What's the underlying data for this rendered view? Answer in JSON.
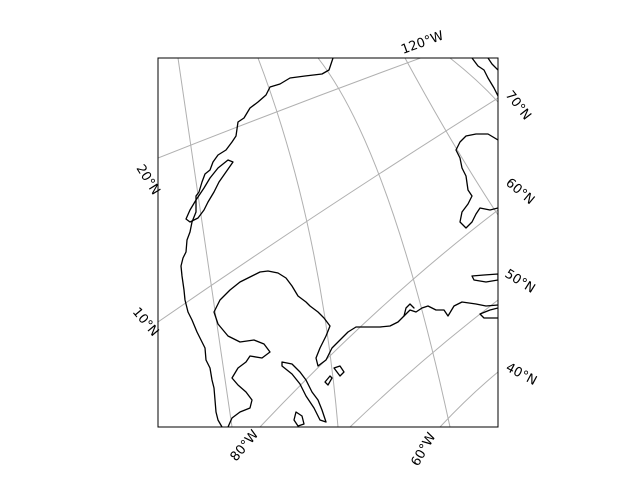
{
  "map": {
    "projection_hint": "conic / polar projection over North America",
    "gridlines": true,
    "colors": {
      "coastline": "#000000",
      "gridline": "#b0b0b0",
      "frame": "#000000",
      "background": "#ffffff"
    },
    "longitude_labels": {
      "w120": "120°W",
      "w80": "80°W",
      "w60": "60°W"
    },
    "latitude_labels": {
      "n70": "70°N",
      "n60": "60°N",
      "n50": "50°N",
      "n40": "40°N",
      "n20": "20°N",
      "n10": "10°N"
    }
  }
}
